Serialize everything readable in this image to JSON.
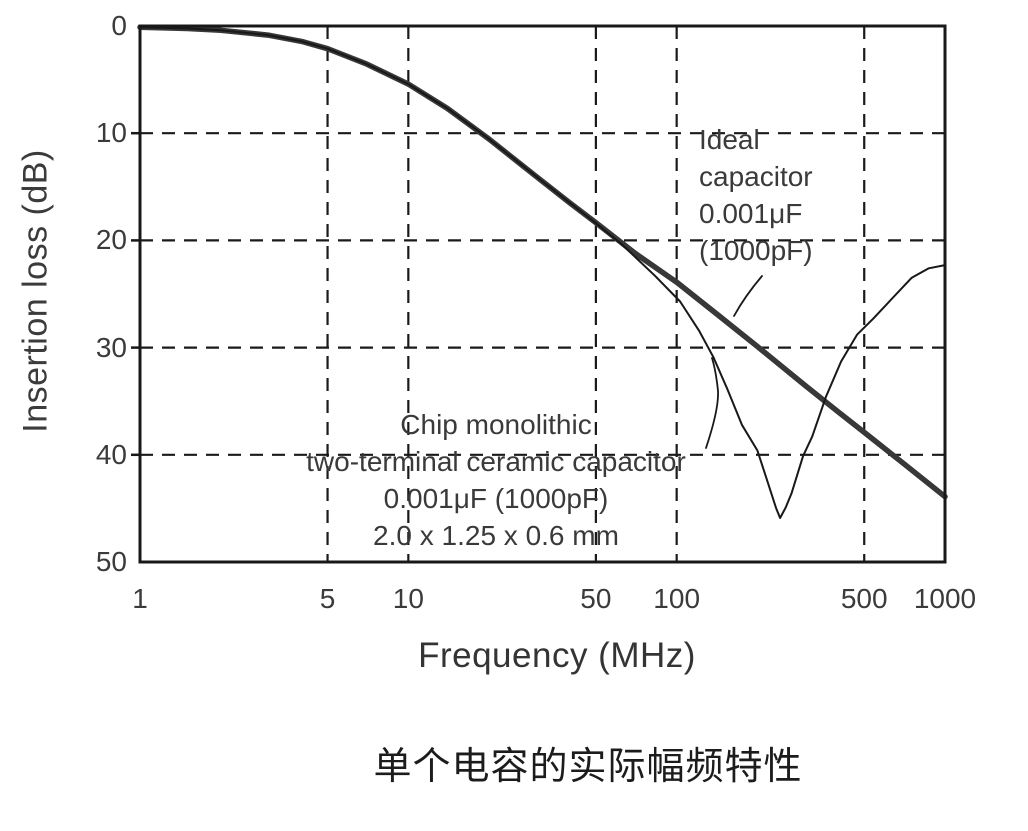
{
  "figure": {
    "caption": "单个电容的实际幅频特性"
  },
  "chart_data": {
    "type": "line",
    "title": "",
    "xlabel": "Frequency (MHz)",
    "ylabel": "Insertion loss (dB)",
    "x_scale": "log",
    "xlim": [
      1,
      1000
    ],
    "ylim": [
      0,
      50
    ],
    "y_axis_direction": "loss increases downward (0 at top, 50 at bottom)",
    "grid": "dashed",
    "x_ticks": [
      {
        "v": 1,
        "label": "1"
      },
      {
        "v": 5,
        "label": "5"
      },
      {
        "v": 10,
        "label": "10"
      },
      {
        "v": 50,
        "label": "50"
      },
      {
        "v": 100,
        "label": "100"
      },
      {
        "v": 500,
        "label": "500"
      },
      {
        "v": 1000,
        "label": "1000"
      }
    ],
    "x_gridlines": [
      5,
      10,
      50,
      100,
      500
    ],
    "y_ticks": [
      {
        "v": 0,
        "label": "0"
      },
      {
        "v": 10,
        "label": "10"
      },
      {
        "v": 20,
        "label": "20"
      },
      {
        "v": 30,
        "label": "30"
      },
      {
        "v": 40,
        "label": "40"
      },
      {
        "v": 50,
        "label": "50"
      }
    ],
    "y_gridlines": [
      10,
      20,
      30,
      40
    ],
    "series": [
      {
        "name": "Ideal capacitor 0.001μF (1000pF)",
        "line_weight": "thick",
        "points": [
          [
            1,
            0.11
          ],
          [
            1.5,
            0.23
          ],
          [
            2,
            0.4
          ],
          [
            3,
            0.85
          ],
          [
            4,
            1.44
          ],
          [
            5,
            2.12
          ],
          [
            7,
            3.55
          ],
          [
            10,
            5.42
          ],
          [
            14,
            7.7
          ],
          [
            20,
            10.55
          ],
          [
            30,
            14.05
          ],
          [
            40,
            16.5
          ],
          [
            50,
            18.35
          ],
          [
            70,
            21.2
          ],
          [
            100,
            23.9
          ],
          [
            140,
            26.8
          ],
          [
            200,
            29.9
          ],
          [
            300,
            33.5
          ],
          [
            400,
            36.0
          ],
          [
            500,
            37.9
          ],
          [
            700,
            40.8
          ],
          [
            1000,
            43.9
          ]
        ]
      },
      {
        "name": "Chip monolithic two-terminal ceramic capacitor 0.001μF (1000pF) 2.0 x 1.25 x 0.6 mm",
        "line_weight": "thin",
        "points": [
          [
            1,
            0.11
          ],
          [
            1.5,
            0.23
          ],
          [
            2,
            0.4
          ],
          [
            3,
            0.85
          ],
          [
            4,
            1.44
          ],
          [
            5,
            2.12
          ],
          [
            7,
            3.55
          ],
          [
            10,
            5.42
          ],
          [
            14,
            7.7
          ],
          [
            20,
            10.55
          ],
          [
            30,
            14.05
          ],
          [
            40,
            16.5
          ],
          [
            50,
            18.4
          ],
          [
            62,
            20.3
          ],
          [
            83,
            23.3
          ],
          [
            103,
            25.7
          ],
          [
            121,
            28.4
          ],
          [
            137,
            30.9
          ],
          [
            154,
            33.8
          ],
          [
            175,
            37.2
          ],
          [
            200,
            39.6
          ],
          [
            218,
            42.5
          ],
          [
            235,
            45.0
          ],
          [
            243,
            45.9
          ],
          [
            255,
            44.9
          ],
          [
            268,
            43.6
          ],
          [
            296,
            40.1
          ],
          [
            320,
            38.3
          ],
          [
            360,
            34.6
          ],
          [
            410,
            31.3
          ],
          [
            470,
            28.8
          ],
          [
            540,
            27.3
          ],
          [
            620,
            25.7
          ],
          [
            750,
            23.5
          ],
          [
            870,
            22.6
          ],
          [
            1000,
            22.3
          ]
        ]
      }
    ],
    "annotations": [
      {
        "id": "ideal",
        "lines": [
          "Ideal",
          "capacitor",
          "0.001μF",
          "(1000pF)"
        ]
      },
      {
        "id": "chip",
        "lines": [
          "Chip monolithic",
          "two-terminal ceramic capacitor",
          "0.001μF (1000pF)",
          "2.0 x 1.25 x 0.6 mm"
        ]
      }
    ]
  }
}
